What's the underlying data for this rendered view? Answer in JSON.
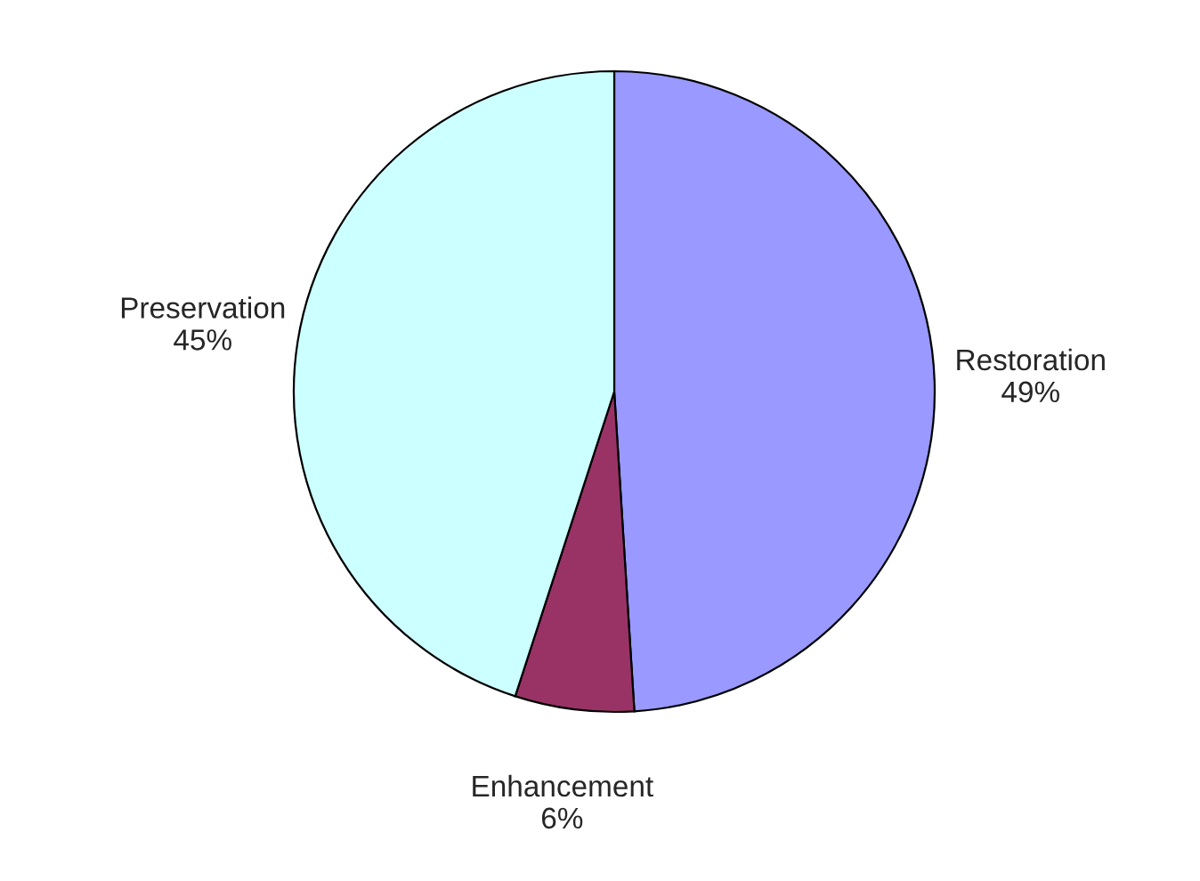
{
  "chart_data": {
    "type": "pie",
    "categories": [
      "Restoration",
      "Enhancement",
      "Preservation"
    ],
    "values": [
      49,
      6,
      45
    ],
    "value_labels": [
      "49%",
      "6%",
      "45%"
    ],
    "colors": [
      "#9999ff",
      "#993366",
      "#ccffff"
    ],
    "legend": false
  }
}
